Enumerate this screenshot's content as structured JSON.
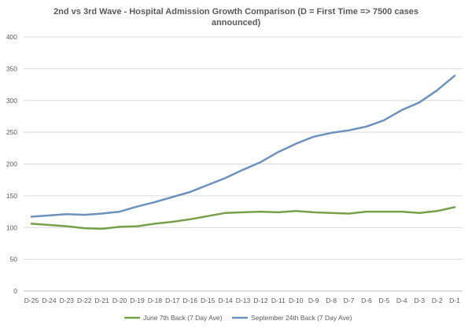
{
  "chart_data": {
    "type": "line",
    "title_lines": [
      "2nd vs 3rd Wave - Hospital Admission Growth Comparison (D = First Time => 7500 cases",
      "announced)"
    ],
    "xlabel": "",
    "ylabel": "",
    "ylim": [
      0,
      400
    ],
    "yticks": [
      0,
      50,
      100,
      150,
      200,
      250,
      300,
      350,
      400
    ],
    "grid": "horizontal",
    "legend_position": "bottom",
    "categories": [
      "D-25",
      "D-24",
      "D-23",
      "D-22",
      "D-21",
      "D-20",
      "D-19",
      "D-18",
      "D-17",
      "D-16",
      "D-15",
      "D-14",
      "D-13",
      "D-12",
      "D-11",
      "D-10",
      "D-9",
      "D-8",
      "D-7",
      "D-6",
      "D-5",
      "D-4",
      "D-3",
      "D-2",
      "D-1"
    ],
    "series": [
      {
        "name": "June 7th Back (7 Day Ave)",
        "color": "#77a04a",
        "values": [
          106,
          104,
          102,
          99,
          98,
          101,
          102,
          106,
          109,
          113,
          118,
          123,
          124,
          125,
          124,
          126,
          124,
          123,
          122,
          125,
          125,
          125,
          123,
          126,
          132
        ]
      },
      {
        "name": "September 24th Back (7 Day Ave)",
        "color": "#6d91bd",
        "values": [
          117,
          119,
          121,
          120,
          122,
          125,
          133,
          140,
          148,
          156,
          167,
          178,
          191,
          203,
          219,
          232,
          243,
          249,
          253,
          259,
          269,
          285,
          297,
          316,
          339
        ]
      }
    ]
  }
}
